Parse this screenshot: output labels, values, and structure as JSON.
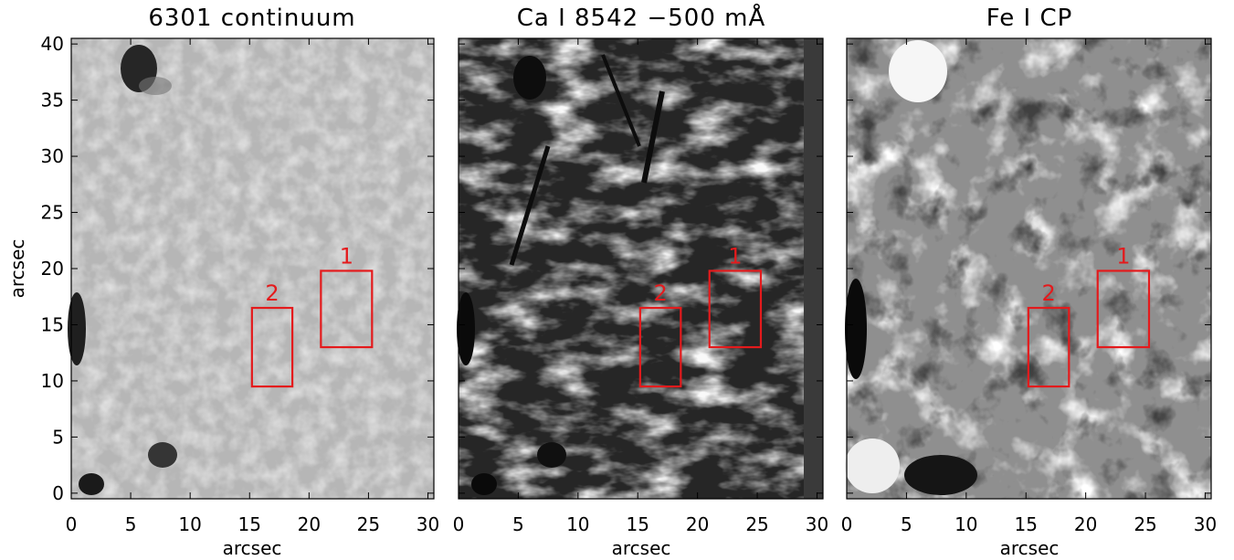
{
  "figure": {
    "y_axis_label": "arcsec",
    "x_axis_label": "arcsec",
    "x_ticks": [
      "0",
      "5",
      "10",
      "15",
      "20",
      "25",
      "30"
    ],
    "y_ticks": [
      "0",
      "5",
      "10",
      "15",
      "20",
      "25",
      "30",
      "35",
      "40"
    ],
    "x_range": [
      0,
      30.5
    ],
    "y_range": [
      -0.5,
      40.5
    ],
    "box_color": "#e41a1c",
    "panels": [
      {
        "title": "6301 continuum",
        "style": "continuum"
      },
      {
        "title": "Ca I 8542 −500 mÅ",
        "style": "chromosphere"
      },
      {
        "title": "Fe I CP",
        "style": "magnetogram"
      }
    ],
    "boxes": [
      {
        "label": "1",
        "x": [
          21.0,
          25.3
        ],
        "y": [
          13.0,
          19.8
        ]
      },
      {
        "label": "2",
        "x": [
          15.2,
          18.6
        ],
        "y": [
          9.5,
          16.5
        ]
      }
    ]
  }
}
